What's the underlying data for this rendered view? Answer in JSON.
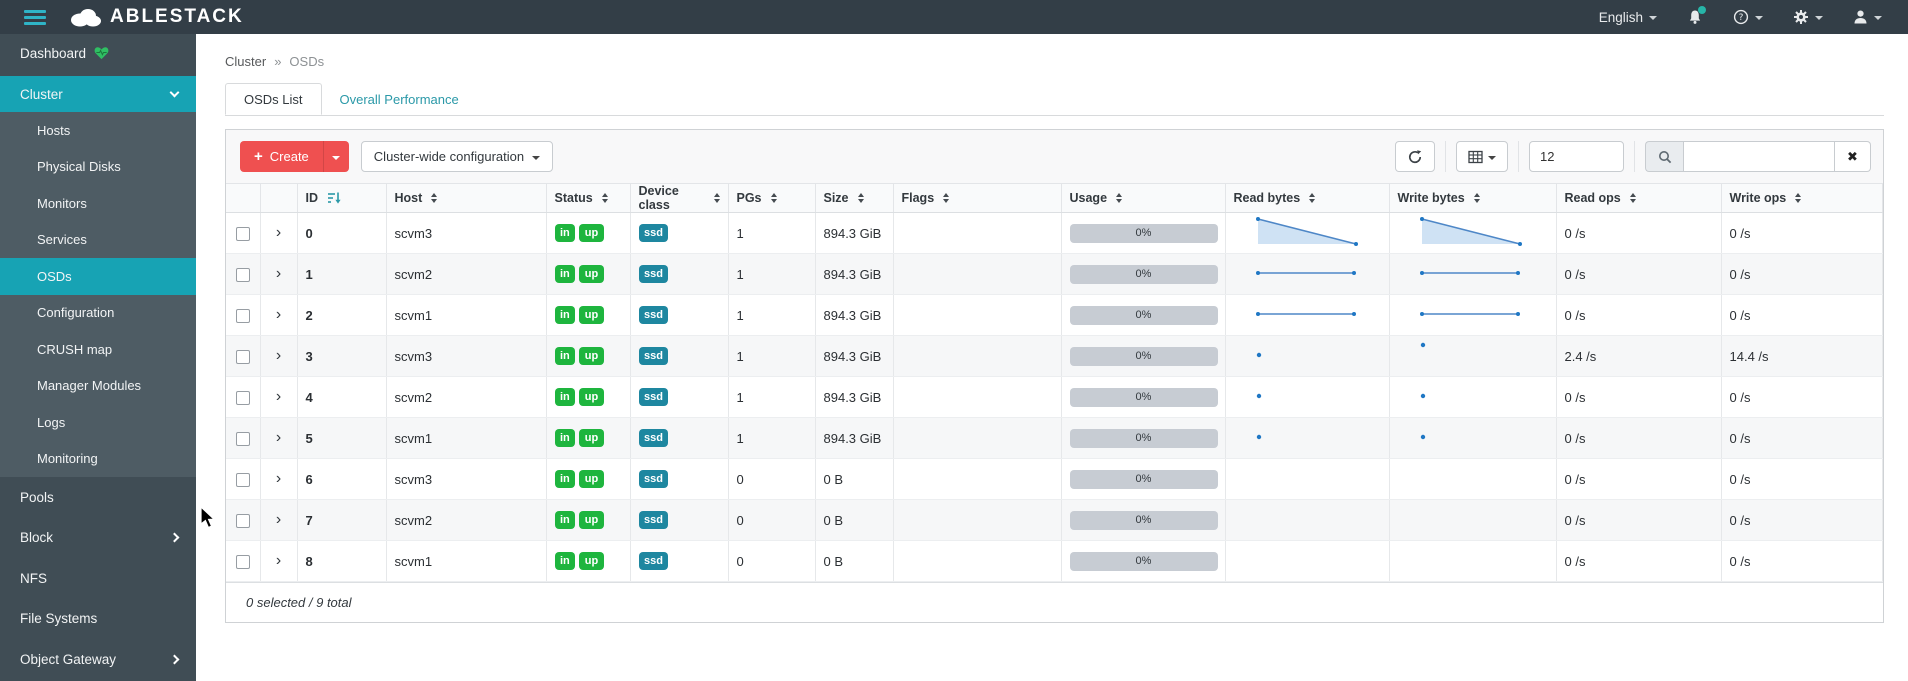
{
  "colors": {
    "navbar_bg": "#333e47",
    "sidebar_bg": "#404d55",
    "submenu_bg": "#4e5c64",
    "accent_teal": "#17a3b4",
    "link_teal": "#2b99a8",
    "danger_red": "#ef5050",
    "success_green": "#1eb53e",
    "ssd_teal": "#1e87a0",
    "spark_line": "#4e87c7",
    "spark_fill": "#cfe2f4",
    "usage_gray": "#c7ccd3"
  },
  "icons": {
    "plus": "+",
    "clear": "✖",
    "expand_chevron": "›"
  },
  "navbar": {
    "brand": "ABLESTACK",
    "language": "English"
  },
  "sidebar": {
    "items": [
      {
        "label": "Dashboard",
        "type": "dash",
        "icon": "heartbeat-icon"
      },
      {
        "label": "Cluster",
        "type": "section",
        "chevron": "down"
      },
      {
        "label": "Hosts",
        "type": "sub"
      },
      {
        "label": "Physical Disks",
        "type": "sub"
      },
      {
        "label": "Monitors",
        "type": "sub"
      },
      {
        "label": "Services",
        "type": "sub"
      },
      {
        "label": "OSDs",
        "type": "sub",
        "active": true
      },
      {
        "label": "Configuration",
        "type": "sub"
      },
      {
        "label": "CRUSH map",
        "type": "sub"
      },
      {
        "label": "Manager Modules",
        "type": "sub"
      },
      {
        "label": "Logs",
        "type": "sub"
      },
      {
        "label": "Monitoring",
        "type": "sub"
      },
      {
        "label": "Pools",
        "type": "top"
      },
      {
        "label": "Block",
        "type": "top",
        "chevron": "right"
      },
      {
        "label": "NFS",
        "type": "top"
      },
      {
        "label": "File Systems",
        "type": "top"
      },
      {
        "label": "Object Gateway",
        "type": "top",
        "chevron": "right"
      }
    ]
  },
  "breadcrumb": {
    "parent": "Cluster",
    "separator": "»",
    "current": "OSDs"
  },
  "tabs": [
    {
      "label": "OSDs List",
      "active": true
    },
    {
      "label": "Overall Performance",
      "active": false
    }
  ],
  "toolbar": {
    "create_label": "Create",
    "config_label": "Cluster-wide configuration",
    "page_size": "12",
    "search_value": ""
  },
  "table": {
    "columns": [
      {
        "label": "ID",
        "sort": "active"
      },
      {
        "label": "Host"
      },
      {
        "label": "Status"
      },
      {
        "label": "Device class"
      },
      {
        "label": "PGs"
      },
      {
        "label": "Size"
      },
      {
        "label": "Flags"
      },
      {
        "label": "Usage"
      },
      {
        "label": "Read bytes"
      },
      {
        "label": "Write bytes"
      },
      {
        "label": "Read ops"
      },
      {
        "label": "Write ops"
      }
    ],
    "rows": [
      {
        "id": "0",
        "host": "scvm3",
        "status": [
          "in",
          "up"
        ],
        "device_class": "ssd",
        "pgs": "1",
        "size": "894.3 GiB",
        "flags": "",
        "usage": "0%",
        "read_bytes_spark": "decline",
        "write_bytes_spark": "decline",
        "read_ops": "0 /s",
        "write_ops": "0 /s"
      },
      {
        "id": "1",
        "host": "scvm2",
        "status": [
          "in",
          "up"
        ],
        "device_class": "ssd",
        "pgs": "1",
        "size": "894.3 GiB",
        "flags": "",
        "usage": "0%",
        "read_bytes_spark": "flat",
        "write_bytes_spark": "flat",
        "read_ops": "0 /s",
        "write_ops": "0 /s"
      },
      {
        "id": "2",
        "host": "scvm1",
        "status": [
          "in",
          "up"
        ],
        "device_class": "ssd",
        "pgs": "1",
        "size": "894.3 GiB",
        "flags": "",
        "usage": "0%",
        "read_bytes_spark": "flat",
        "write_bytes_spark": "flat",
        "read_ops": "0 /s",
        "write_ops": "0 /s"
      },
      {
        "id": "3",
        "host": "scvm3",
        "status": [
          "in",
          "up"
        ],
        "device_class": "ssd",
        "pgs": "1",
        "size": "894.3 GiB",
        "flags": "",
        "usage": "0%",
        "read_bytes_spark": "dot",
        "write_bytes_spark": "dot-high",
        "read_ops": "2.4 /s",
        "write_ops": "14.4 /s"
      },
      {
        "id": "4",
        "host": "scvm2",
        "status": [
          "in",
          "up"
        ],
        "device_class": "ssd",
        "pgs": "1",
        "size": "894.3 GiB",
        "flags": "",
        "usage": "0%",
        "read_bytes_spark": "dot",
        "write_bytes_spark": "dot",
        "read_ops": "0 /s",
        "write_ops": "0 /s"
      },
      {
        "id": "5",
        "host": "scvm1",
        "status": [
          "in",
          "up"
        ],
        "device_class": "ssd",
        "pgs": "1",
        "size": "894.3 GiB",
        "flags": "",
        "usage": "0%",
        "read_bytes_spark": "dot",
        "write_bytes_spark": "dot",
        "read_ops": "0 /s",
        "write_ops": "0 /s"
      },
      {
        "id": "6",
        "host": "scvm3",
        "status": [
          "in",
          "up"
        ],
        "device_class": "ssd",
        "pgs": "0",
        "size": "0 B",
        "flags": "",
        "usage": "0%",
        "read_bytes_spark": "none",
        "write_bytes_spark": "none",
        "read_ops": "0 /s",
        "write_ops": "0 /s"
      },
      {
        "id": "7",
        "host": "scvm2",
        "status": [
          "in",
          "up"
        ],
        "device_class": "ssd",
        "pgs": "0",
        "size": "0 B",
        "flags": "",
        "usage": "0%",
        "read_bytes_spark": "none",
        "write_bytes_spark": "none",
        "read_ops": "0 /s",
        "write_ops": "0 /s"
      },
      {
        "id": "8",
        "host": "scvm1",
        "status": [
          "in",
          "up"
        ],
        "device_class": "ssd",
        "pgs": "0",
        "size": "0 B",
        "flags": "",
        "usage": "0%",
        "read_bytes_spark": "none",
        "write_bytes_spark": "none",
        "read_ops": "0 /s",
        "write_ops": "0 /s"
      }
    ],
    "footer": "0 selected / 9 total"
  }
}
